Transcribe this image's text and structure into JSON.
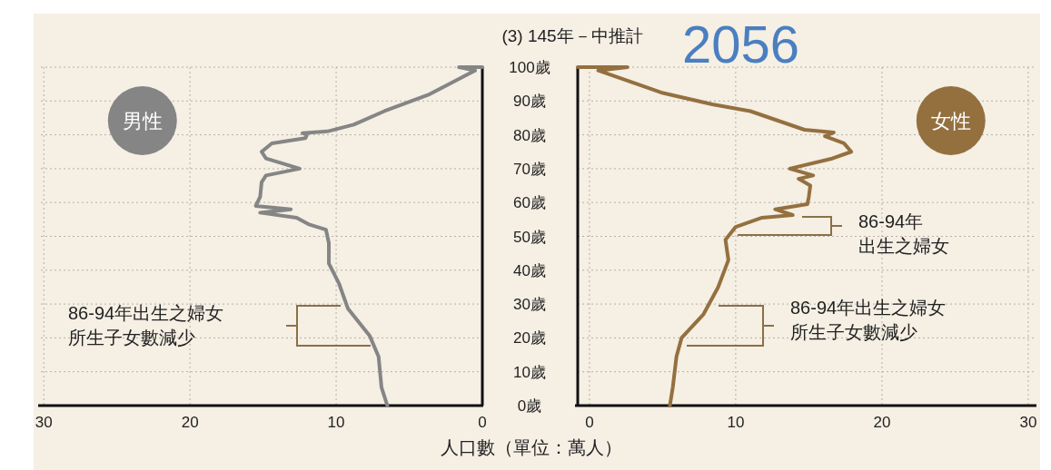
{
  "chart_data": [
    {
      "type": "line",
      "xlabel": "人口數（單位：萬人）",
      "xlim": [
        30.2,
        0
      ],
      "xticks": [
        30,
        20,
        10,
        0
      ],
      "ylim": [
        0,
        100
      ],
      "yticks": [
        {
          "value": 0,
          "label": "0歲"
        },
        {
          "value": 10,
          "label": "10歲"
        },
        {
          "value": 20,
          "label": "20歲"
        },
        {
          "value": 30,
          "label": "30歲"
        },
        {
          "value": 40,
          "label": "40歲"
        },
        {
          "value": 50,
          "label": "50歲"
        },
        {
          "value": 60,
          "label": "60歲"
        },
        {
          "value": 70,
          "label": "70歲"
        },
        {
          "value": 80,
          "label": "80歲"
        },
        {
          "value": 90,
          "label": "90歲"
        },
        {
          "value": 100,
          "label": "100歲"
        }
      ],
      "grid": true,
      "annotations": [
        "86-94年出生之婦女所生子女數減少"
      ],
      "series": [
        {
          "name": "男性",
          "color": "#858585",
          "x": [
            6.5,
            6.9,
            7.1,
            7.7,
            9.2,
            9.8,
            10.5,
            10.5,
            10.7,
            11.9,
            12.7,
            15.2,
            13.1,
            15.5,
            15.2,
            15.1,
            14.8,
            12.5,
            14.8,
            15.1,
            14.4,
            12.1,
            12.0,
            12.3,
            10.6,
            8.8,
            6.7,
            3.6,
            0.5,
            1.6,
            0
          ],
          "values": [
            0,
            5.4,
            14.5,
            20.6,
            28.7,
            36,
            42,
            48,
            52,
            53.6,
            55.5,
            57,
            58,
            59,
            61.7,
            66,
            68,
            70,
            73,
            75,
            77.5,
            79,
            80,
            80.5,
            81,
            83,
            87,
            92,
            99,
            100,
            100
          ]
        }
      ]
    },
    {
      "type": "line",
      "title": "(3) 145年－中推計",
      "subtitle": "2056",
      "xlim": [
        -0.8,
        30.5
      ],
      "xticks": [
        0,
        10,
        20,
        30
      ],
      "ylim": [
        0,
        100
      ],
      "yticks": [
        {
          "value": 0,
          "label": null
        },
        {
          "value": 10,
          "label": null
        },
        {
          "value": 20,
          "label": null
        },
        {
          "value": 30,
          "label": null
        },
        {
          "value": 40,
          "label": null
        },
        {
          "value": 50,
          "label": null
        },
        {
          "value": 60,
          "label": null
        },
        {
          "value": 70,
          "label": null
        },
        {
          "value": 80,
          "label": null
        },
        {
          "value": 90,
          "label": null
        },
        {
          "value": 100,
          "label": null
        }
      ],
      "tick_labels": "x",
      "grid": true,
      "annotations": [
        "86-94年出生之婦女",
        "86-94年出生之婦女所生子女數減少"
      ],
      "series": [
        {
          "name": "女性",
          "color": "#94703f",
          "x": [
            5.5,
            5.7,
            5.95,
            6.3,
            7.8,
            8.8,
            9.5,
            9.3,
            10.0,
            11.8,
            13.9,
            12.7,
            14.9,
            15.0,
            15.1,
            14.3,
            15.3,
            13.7,
            16.6,
            17.9,
            17.4,
            16.1,
            16.7,
            14.7,
            11.0,
            8.4,
            4.9,
            0.6,
            2.6,
            -0.8
          ],
          "values": [
            0,
            5.4,
            14.5,
            20,
            27,
            35,
            43,
            49,
            52.8,
            55.5,
            56.3,
            58,
            59.5,
            61.7,
            65,
            67,
            68,
            70,
            73,
            75,
            77.5,
            79.6,
            80.7,
            81.5,
            87,
            89,
            92.5,
            99,
            100,
            100
          ]
        }
      ]
    }
  ]
}
